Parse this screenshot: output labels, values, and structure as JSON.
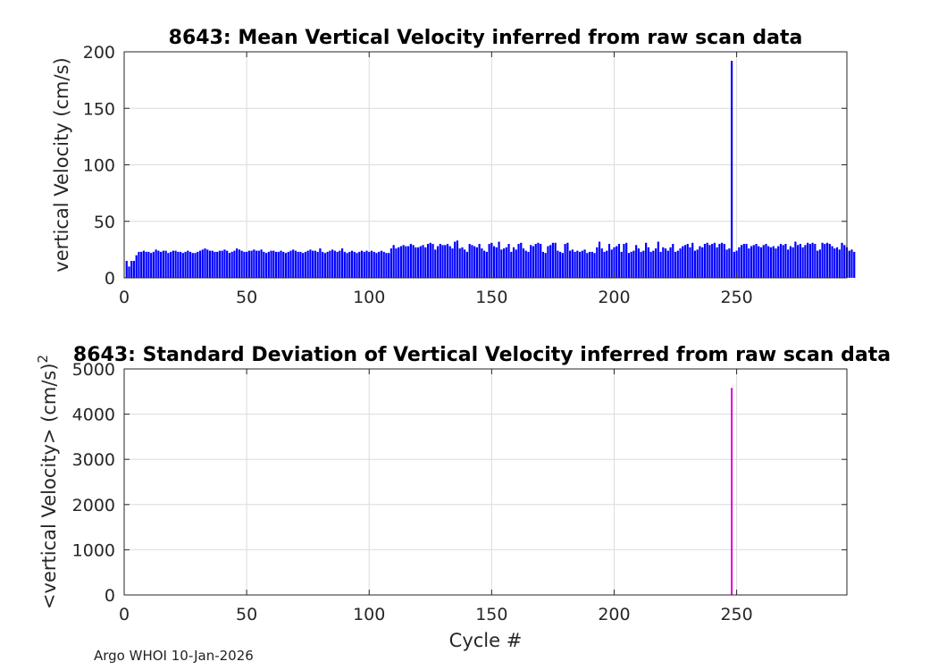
{
  "chart_data": [
    {
      "type": "bar",
      "title": "8643: Mean Vertical Velocity inferred from raw scan data",
      "xlabel": "",
      "ylabel": "vertical Velocity (cm/s)",
      "xlim": [
        0,
        295
      ],
      "ylim": [
        0,
        200
      ],
      "xticks": [
        0,
        50,
        100,
        150,
        200,
        250
      ],
      "yticks": [
        0,
        50,
        100,
        150,
        200
      ],
      "grid": true,
      "color": "#0000ff",
      "x_start": 1,
      "values": [
        15,
        10,
        15,
        15,
        20,
        23,
        23,
        24,
        23,
        23,
        22,
        23,
        25,
        24,
        23,
        24,
        24,
        22,
        23,
        24,
        24,
        23,
        23,
        22,
        23,
        24,
        23,
        22,
        22,
        23,
        24,
        25,
        26,
        25,
        24,
        24,
        23,
        23,
        24,
        24,
        25,
        24,
        22,
        23,
        24,
        26,
        25,
        24,
        23,
        23,
        24,
        24,
        25,
        24,
        24,
        25,
        23,
        22,
        23,
        24,
        24,
        23,
        23,
        24,
        23,
        22,
        23,
        24,
        25,
        24,
        23,
        23,
        22,
        23,
        24,
        25,
        24,
        24,
        23,
        26,
        23,
        22,
        23,
        24,
        25,
        24,
        23,
        24,
        26,
        23,
        22,
        23,
        24,
        23,
        22,
        23,
        24,
        23,
        24,
        23,
        24,
        23,
        22,
        23,
        24,
        23,
        22,
        22,
        26,
        29,
        26,
        27,
        28,
        29,
        28,
        28,
        30,
        29,
        27,
        27,
        28,
        29,
        27,
        30,
        31,
        30,
        25,
        28,
        30,
        29,
        29,
        30,
        28,
        26,
        32,
        33,
        26,
        27,
        25,
        23,
        30,
        29,
        28,
        27,
        30,
        26,
        24,
        23,
        30,
        31,
        28,
        27,
        32,
        25,
        26,
        27,
        30,
        23,
        27,
        25,
        30,
        31,
        26,
        24,
        23,
        29,
        28,
        30,
        31,
        30,
        23,
        22,
        28,
        29,
        31,
        31,
        24,
        23,
        22,
        30,
        31,
        24,
        25,
        23,
        24,
        23,
        24,
        25,
        22,
        23,
        23,
        22,
        27,
        32,
        26,
        23,
        24,
        30,
        25,
        27,
        28,
        30,
        23,
        30,
        31,
        22,
        23,
        24,
        29,
        26,
        23,
        24,
        31,
        27,
        23,
        24,
        26,
        32,
        23,
        27,
        26,
        24,
        27,
        30,
        23,
        24,
        26,
        28,
        29,
        30,
        27,
        31,
        24,
        25,
        28,
        27,
        30,
        31,
        29,
        30,
        31,
        27,
        30,
        31,
        30,
        25,
        26,
        192,
        23,
        24,
        27,
        29,
        30,
        30,
        26,
        28,
        29,
        30,
        28,
        27,
        29,
        30,
        28,
        27,
        28,
        26,
        28,
        30,
        29,
        30,
        25,
        28,
        27,
        32,
        29,
        30,
        27,
        29,
        31,
        30,
        31,
        30,
        24,
        25,
        31,
        30,
        31,
        30,
        28,
        26,
        27,
        25,
        31,
        29,
        27,
        24,
        25,
        23
      ]
    },
    {
      "type": "bar",
      "title": "8643: Standard Deviation of Vertical Velocity inferred from raw scan data",
      "xlabel": "Cycle #",
      "ylabel": "<vertical Velocity> (cm/s)",
      "ylabel_superscript": "2",
      "xlim": [
        0,
        295
      ],
      "ylim": [
        0,
        5000
      ],
      "xticks": [
        0,
        50,
        100,
        150,
        200,
        250
      ],
      "yticks": [
        0,
        1000,
        2000,
        3000,
        4000,
        5000
      ],
      "grid": true,
      "color": "#e000e0",
      "points": [
        {
          "x": 248,
          "y": 4580
        }
      ]
    }
  ],
  "footer": "Argo WHOI 10-Jan-2026"
}
